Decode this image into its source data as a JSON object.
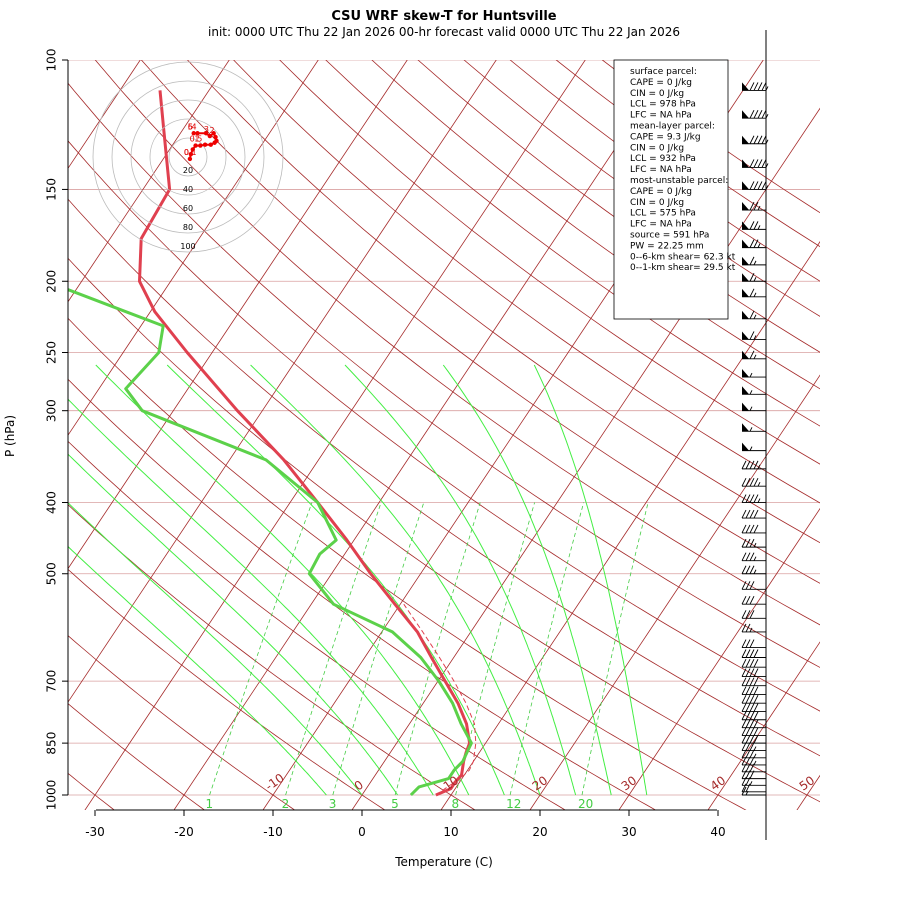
{
  "header": {
    "title": "CSU WRF skew-T for Huntsville",
    "subtitle": "init: 0000 UTC Thu 22 Jan 2026     00-hr forecast valid 0000 UTC Thu 22 Jan 2026"
  },
  "colors": {
    "temperature": "#e0404f",
    "dewpoint": "#5cd14a",
    "isotherm": "#a52a2a",
    "isobar": "#d9a0a0",
    "moist_adiabat": "#44ee44",
    "mixing_ratio": "#44cc44",
    "hodograph": "#ee0000"
  },
  "chart_data": {
    "type": "skew-t",
    "xlabel": "Temperature (C)",
    "ylabel": "P (hPa)",
    "x_ticks": [
      -30,
      -20,
      -10,
      0,
      10,
      20,
      30,
      40
    ],
    "pressure_ticks": [
      100,
      150,
      200,
      250,
      300,
      400,
      500,
      700,
      850,
      1000
    ],
    "isotherm_labels": [
      "-10",
      "0",
      "10",
      "20",
      "30",
      "40",
      "50"
    ],
    "mixing_ratio_labels": [
      "1",
      "2",
      "3",
      "5",
      "8",
      "12",
      "20"
    ],
    "series": [
      {
        "name": "temperature",
        "pressure": [
          1000,
          980,
          960,
          940,
          925,
          900,
          875,
          850,
          800,
          750,
          700,
          650,
          600,
          550,
          500,
          450,
          400,
          350,
          300,
          250,
          220,
          200,
          175,
          150,
          125,
          110
        ],
        "temp_c": [
          8.3,
          9.5,
          9.5,
          9.7,
          9.4,
          8.9,
          8.5,
          8.2,
          6.4,
          3.9,
          0.8,
          -2.5,
          -6.0,
          -10.6,
          -15.6,
          -20.8,
          -26.9,
          -33.9,
          -42.8,
          -52.8,
          -59.5,
          -63.5,
          -66.5,
          -67.0,
          -72.0,
          -75.5
        ]
      },
      {
        "name": "dewpoint",
        "pressure": [
          1000,
          975,
          950,
          925,
          900,
          875,
          850,
          800,
          750,
          700,
          650,
          600,
          550,
          500,
          470,
          450,
          400,
          350,
          300,
          280,
          250,
          230,
          200,
          180
        ],
        "temp_c": [
          5.5,
          5.8,
          8.5,
          8.5,
          8.8,
          8.6,
          8.4,
          5.8,
          3.3,
          0.1,
          -3.7,
          -8.8,
          -17.5,
          -22.5,
          -22.8,
          -22.0,
          -26.9,
          -35.9,
          -53.5,
          -57.0,
          -56.0,
          -57.5,
          -74.0,
          -78.5
        ]
      },
      {
        "name": "parcel",
        "pressure": [
          1000,
          975,
          950,
          925,
          900,
          850,
          800,
          750,
          700,
          650,
          600,
          550
        ],
        "temp_c": [
          8.3,
          9.0,
          9.8,
          10.2,
          10.0,
          8.9,
          7.3,
          4.8,
          1.8,
          -1.6,
          -5.4,
          -9.6
        ]
      }
    ],
    "wind_barbs": {
      "pressure": [
        110,
        120,
        130,
        140,
        150,
        160,
        170,
        180,
        190,
        200,
        210,
        225,
        240,
        255,
        270,
        285,
        300,
        320,
        340,
        360,
        380,
        400,
        420,
        440,
        460,
        480,
        500,
        525,
        550,
        575,
        600,
        630,
        650,
        670,
        690,
        710,
        730,
        750,
        770,
        790,
        810,
        830,
        850,
        870,
        890,
        910,
        930,
        950,
        970,
        990,
        1000
      ],
      "speed_kt": [
        95,
        95,
        95,
        95,
        95,
        75,
        75,
        75,
        65,
        65,
        65,
        65,
        65,
        65,
        55,
        55,
        55,
        55,
        55,
        45,
        45,
        45,
        40,
        40,
        35,
        35,
        35,
        30,
        30,
        30,
        25,
        30,
        40,
        40,
        40,
        40,
        40,
        40,
        40,
        40,
        40,
        40,
        40,
        35,
        35,
        35,
        30,
        30,
        25,
        20,
        15
      ]
    },
    "indices": [
      "surface parcel:",
      "CAPE = 0 J/kg",
      "CIN = 0 J/kg",
      "LCL = 978 hPa",
      "LFC = NA hPa",
      "",
      "mean-layer parcel:",
      "CAPE = 9.3 J/kg",
      "CIN = 0 J/kg",
      "LCL = 932 hPa",
      "LFC = NA hPa",
      "",
      "most-unstable parcel:",
      "CAPE = 0 J/kg",
      "CIN = 0 J/kg",
      "LCL = 575 hPa",
      "LFC = NA hPa",
      "source = 591 hPa",
      "",
      "PW =  22.25 mm",
      "",
      "0--6-km shear= 62.3 kt",
      "0--1-km shear= 29.5 kt"
    ],
    "hodograph": {
      "ring_labels": [
        "20",
        "40",
        "60",
        "80",
        "100"
      ],
      "u_kt": [
        2,
        3,
        5,
        8,
        13,
        18,
        24,
        28,
        30,
        29,
        27,
        23,
        19,
        10,
        6
      ],
      "v_kt": [
        -2,
        3,
        8,
        12,
        12,
        13,
        13,
        15,
        17,
        21,
        25,
        22,
        25,
        25,
        25
      ],
      "point_labels": [
        "0.1",
        "0",
        "3",
        "4",
        "5",
        "6",
        "1",
        "0.5",
        "2"
      ]
    }
  }
}
